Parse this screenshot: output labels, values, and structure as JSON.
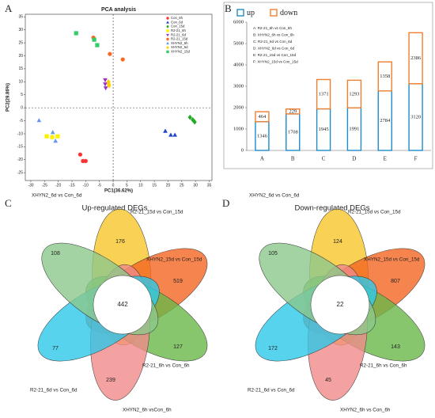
{
  "chart_data": [
    {
      "type": "scatter",
      "panel": "A",
      "title": "PCA analysis",
      "xlabel": "PC1(36.62%)",
      "ylabel": "PC2(29.86%)",
      "xlim": [
        -32,
        36
      ],
      "ylim": [
        -28,
        36
      ],
      "xticks": [
        -30,
        -25,
        -20,
        -15,
        -10,
        -5,
        0,
        5,
        10,
        15,
        20,
        25,
        30,
        35
      ],
      "yticks": [
        -25,
        -20,
        -15,
        -10,
        -5,
        0,
        5,
        10,
        15,
        20,
        25,
        30,
        35
      ],
      "hlines": [
        0
      ],
      "vlines": [
        0
      ],
      "legend": "upper right",
      "series": [
        {
          "name": "Con_6h",
          "color": "#ff3333",
          "marker": "circle",
          "x": [
            -12,
            -11,
            -10
          ],
          "y": [
            -18,
            -20.5,
            -20.5
          ]
        },
        {
          "name": "Con_6d",
          "color": "#2244cc",
          "marker": "triangle",
          "x": [
            19,
            21,
            22.5
          ],
          "y": [
            -9,
            -10.5,
            -10.5
          ]
        },
        {
          "name": "Con_15d",
          "color": "#22aa22",
          "marker": "diamond",
          "x": [
            28,
            29,
            29.7
          ],
          "y": [
            -3.7,
            -4.6,
            -5.5
          ]
        },
        {
          "name": "R2-21_6h",
          "color": "#ffee00",
          "marker": "square",
          "x": [
            -24.2,
            -22.2,
            -20.2
          ],
          "y": [
            -11,
            -11.3,
            -11
          ]
        },
        {
          "name": "R2-21_6d",
          "color": "#9933cc",
          "marker": "itriangle",
          "x": [
            -2.9,
            -2.9,
            -2.7
          ],
          "y": [
            10.7,
            9.1,
            7.6
          ]
        },
        {
          "name": "R2-21_15d",
          "color": "#ff6622",
          "marker": "circle",
          "x": [
            -7.2,
            -1.2,
            3.5
          ],
          "y": [
            27,
            20.7,
            18.6
          ]
        },
        {
          "name": "XHYN2_6h",
          "color": "#6699ee",
          "marker": "triangle",
          "x": [
            -27,
            -22,
            -21
          ],
          "y": [
            -4.9,
            -9.5,
            -12.8
          ]
        },
        {
          "name": "XHYN2_6d",
          "color": "#ffcc00",
          "marker": "diamond",
          "x": [
            -1.7,
            -1.5,
            -1.6
          ],
          "y": [
            10,
            8.5,
            9.2
          ]
        },
        {
          "name": "XHYN2_15d",
          "color": "#33cc66",
          "marker": "square",
          "x": [
            -13.5,
            -6.9,
            -5.8
          ],
          "y": [
            28.7,
            26.2,
            24.1
          ]
        }
      ]
    },
    {
      "type": "stacked_bar",
      "panel": "B",
      "categories": [
        "A",
        "B",
        "C",
        "D",
        "E",
        "F"
      ],
      "ylim": [
        0,
        6000
      ],
      "yticks": [
        0,
        1000,
        2000,
        3000,
        4000,
        5000,
        6000
      ],
      "legend": "top",
      "series": [
        {
          "name": "up",
          "color": "#1f8bc9",
          "values": [
            1346,
            1708,
            1945,
            1991,
            2784,
            3120
          ]
        },
        {
          "name": "down",
          "color": "#f07f2f",
          "values": [
            464,
            229,
            1371,
            1293,
            1358,
            2386
          ]
        }
      ],
      "annotations": [
        "A: R2-21_6h vs Con_6h",
        "B: XHYN2_6h vs Con_6h",
        "C: R2-21_6d vs Con_6d",
        "D: XHYN2_6d vs Con_6d",
        "E: R2-21_15d vs Con_15d",
        "F: XHYN2_15d vs Con_15d"
      ]
    },
    {
      "type": "venn",
      "panel": "C",
      "title": "Up-regulated DEGs",
      "center": 442,
      "sets": [
        {
          "name": "R2-21_15d vs Con_15d",
          "count": 176,
          "color": "#f7c62a"
        },
        {
          "name": "XHYN2_15d vs Con_15d",
          "count": 519,
          "color": "#f26522"
        },
        {
          "name": "R2-21_6h vs Con_6h",
          "count": 127,
          "color": "#6ab84a"
        },
        {
          "name": "XHYN2_6h vsCon_6h",
          "count": 239,
          "color": "#f08a8a"
        },
        {
          "name": "R2-21_6d vs Con_6d",
          "count": 77,
          "color": "#2ec8e8"
        },
        {
          "name": "XHYN2_6d vs Con_6d",
          "count": 108,
          "color": "#8cc88c"
        }
      ]
    },
    {
      "type": "venn",
      "panel": "D",
      "title": "Down-regulated DEGs",
      "center": 22,
      "sets": [
        {
          "name": "R2-21_15d vs Con_15d",
          "count": 124,
          "color": "#f7c62a"
        },
        {
          "name": "XHYN2_15d vs Con_15d",
          "count": 807,
          "color": "#f26522"
        },
        {
          "name": "R2-21_6h vs Con_6h",
          "count": 143,
          "color": "#6ab84a"
        },
        {
          "name": "XHYN2_6h vs Con_6h",
          "count": 45,
          "color": "#f08a8a"
        },
        {
          "name": "R2-21_6d vs Con_6d",
          "count": 172,
          "color": "#2ec8e8"
        },
        {
          "name": "XHYN2_6d vs Con_6d",
          "count": 105,
          "color": "#8cc88c"
        }
      ]
    }
  ]
}
